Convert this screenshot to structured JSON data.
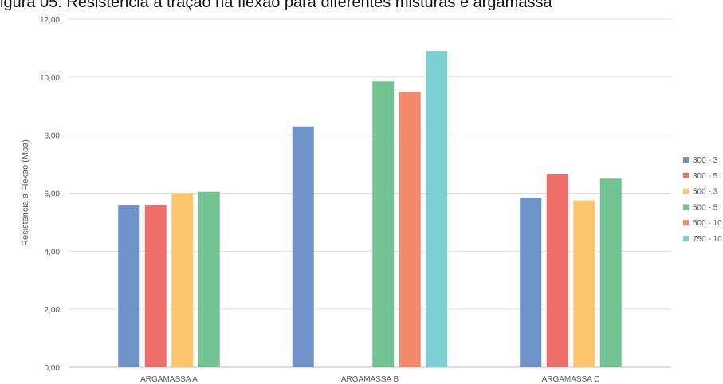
{
  "chart_data": {
    "type": "bar",
    "title": "igura 05: Resistência à tração na flexão para diferentes misturas e argamassa",
    "ylabel": "Resistência à Flexão (Mpa)",
    "xlabel": "",
    "ylim": [
      0,
      12
    ],
    "yticks": [
      "0,00",
      "2,00",
      "4,00",
      "6,00",
      "8,00",
      "10,00",
      "12,00"
    ],
    "grid": true,
    "legend_position": "right",
    "categories": [
      "ARGAMASSA A",
      "ARGAMASSA B",
      "ARGAMASSA C"
    ],
    "series": [
      {
        "name": "300 - 3",
        "color": "#6f93c9",
        "values": [
          5.6,
          8.3,
          5.85
        ]
      },
      {
        "name": "300 - 5",
        "color": "#ef6e6a",
        "values": [
          5.6,
          null,
          6.65
        ]
      },
      {
        "name": "500 - 3",
        "color": "#fdc66d",
        "values": [
          6.0,
          null,
          5.75
        ]
      },
      {
        "name": "500 - 5",
        "color": "#72c492",
        "values": [
          6.05,
          9.85,
          6.5
        ]
      },
      {
        "name": "500 - 10",
        "color": "#f48a6c",
        "values": [
          null,
          9.5,
          null
        ]
      },
      {
        "name": "750 - 10",
        "color": "#7ccfd2",
        "values": [
          null,
          10.9,
          null
        ]
      }
    ]
  }
}
